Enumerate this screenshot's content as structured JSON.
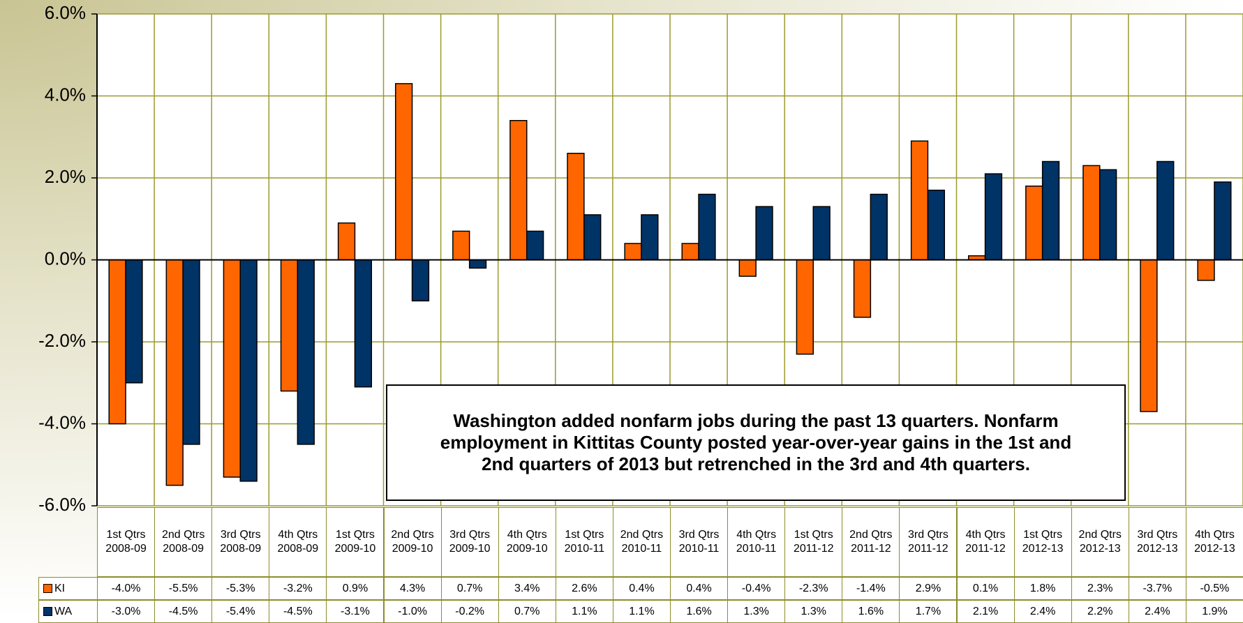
{
  "chart_data": {
    "type": "bar",
    "categories": [
      "1st Qtrs 2008-09",
      "2nd Qtrs 2008-09",
      "3rd Qtrs 2008-09",
      "4th Qtrs 2008-09",
      "1st Qtrs 2009-10",
      "2nd Qtrs 2009-10",
      "3rd Qtrs 2009-10",
      "4th Qtrs 2009-10",
      "1st Qtrs 2010-11",
      "2nd Qtrs 2010-11",
      "3rd Qtrs 2010-11",
      "4th Qtrs 2010-11",
      "1st Qtrs 2011-12",
      "2nd Qtrs 2011-12",
      "3rd Qtrs 2011-12",
      "4th Qtrs 2011-12",
      "1st Qtrs 2012-13",
      "2nd Qtrs 2012-13",
      "3rd Qtrs 2012-13",
      "4th Qtrs 2012-13"
    ],
    "series": [
      {
        "name": "KI",
        "color": "#ff6600",
        "values": [
          -4.0,
          -5.5,
          -5.3,
          -3.2,
          0.9,
          4.3,
          0.7,
          3.4,
          2.6,
          0.4,
          0.4,
          -0.4,
          -2.3,
          -1.4,
          2.9,
          0.1,
          1.8,
          2.3,
          -3.7,
          -0.5
        ],
        "value_labels": [
          "-4.0%",
          "-5.5%",
          "-5.3%",
          "-3.2%",
          "0.9%",
          "4.3%",
          "0.7%",
          "3.4%",
          "2.6%",
          "0.4%",
          "0.4%",
          "-0.4%",
          "-2.3%",
          "-1.4%",
          "2.9%",
          "0.1%",
          "1.8%",
          "2.3%",
          "-3.7%",
          "-0.5%"
        ]
      },
      {
        "name": "WA",
        "color": "#003366",
        "values": [
          -3.0,
          -4.5,
          -5.4,
          -4.5,
          -3.1,
          -1.0,
          -0.2,
          0.7,
          1.1,
          1.1,
          1.6,
          1.3,
          1.3,
          1.6,
          1.7,
          2.1,
          2.4,
          2.2,
          2.4,
          1.9
        ],
        "value_labels": [
          "-3.0%",
          "-4.5%",
          "-5.4%",
          "-4.5%",
          "-3.1%",
          "-1.0%",
          "-0.2%",
          "0.7%",
          "1.1%",
          "1.1%",
          "1.6%",
          "1.3%",
          "1.3%",
          "1.6%",
          "1.7%",
          "2.1%",
          "2.4%",
          "2.2%",
          "2.4%",
          "1.9%"
        ]
      }
    ],
    "ylim": [
      -6,
      6
    ],
    "yticks": [
      {
        "value": -6,
        "label": "-6.0%"
      },
      {
        "value": -4,
        "label": "-4.0%"
      },
      {
        "value": -2,
        "label": "-2.0%"
      },
      {
        "value": 0,
        "label": "0.0%"
      },
      {
        "value": 2,
        "label": "2.0%"
      },
      {
        "value": 4,
        "label": "4.0%"
      },
      {
        "value": 6,
        "label": "6.0%"
      }
    ],
    "grid": true,
    "annotation": "Washington added nonfarm jobs during the past 13 quarters. Nonfarm employment in Kittitas County posted year-over-year gains in the 1st and 2nd quarters of 2013 but retrenched in the 3rd and 4th quarters."
  }
}
